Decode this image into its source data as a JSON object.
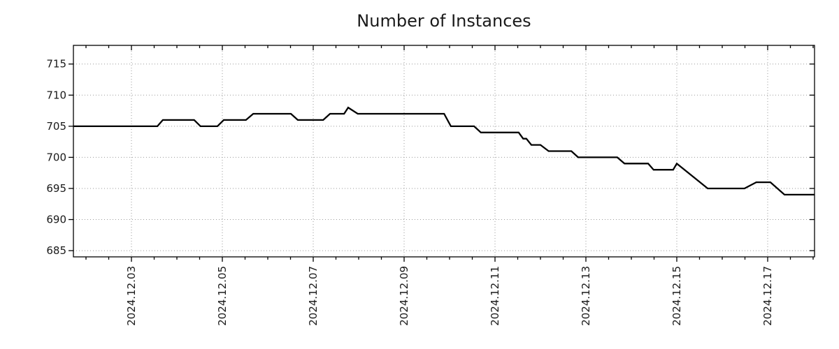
{
  "chart_data": {
    "type": "line",
    "title": "Number of Instances",
    "xlabel": "",
    "ylabel": "",
    "grid": true,
    "grid_style": "dotted",
    "legend": "none",
    "colors": {
      "line": "#000000",
      "grid": "#9a9a9a",
      "text": "#1a1a1a",
      "background": "#ffffff"
    },
    "y_ticks": [
      685,
      690,
      695,
      700,
      705,
      710,
      715
    ],
    "ylim": [
      684,
      718
    ],
    "x_tick_labels": [
      "2024.12.03",
      "2024.12.05",
      "2024.12.07",
      "2024.12.09",
      "2024.12.11",
      "2024.12.13",
      "2024.12.15",
      "2024.12.17"
    ],
    "x_major_days": [
      0,
      2,
      4,
      6,
      8,
      10,
      12,
      14
    ],
    "x_minor_start": -1.0,
    "x_minor_step": 0.5,
    "xlim_days": [
      -1.277,
      15.031
    ],
    "x_day_zero_label": "2024.12.03",
    "series": [
      {
        "name": "instances",
        "color": "#000000",
        "points": [
          [
            -1.277,
            705
          ],
          [
            0.57,
            705
          ],
          [
            0.69,
            706
          ],
          [
            1.38,
            706
          ],
          [
            1.52,
            705
          ],
          [
            1.89,
            705
          ],
          [
            2.03,
            706
          ],
          [
            2.52,
            706
          ],
          [
            2.68,
            707
          ],
          [
            3.51,
            707
          ],
          [
            3.66,
            706
          ],
          [
            4.22,
            706
          ],
          [
            4.37,
            707
          ],
          [
            4.68,
            707
          ],
          [
            4.77,
            708
          ],
          [
            4.98,
            707
          ],
          [
            6.88,
            707
          ],
          [
            7.03,
            705
          ],
          [
            7.54,
            705
          ],
          [
            7.69,
            704
          ],
          [
            8.52,
            704
          ],
          [
            8.62,
            703
          ],
          [
            8.69,
            703
          ],
          [
            8.8,
            702
          ],
          [
            9.0,
            702
          ],
          [
            9.18,
            701
          ],
          [
            9.68,
            701
          ],
          [
            9.83,
            700
          ],
          [
            10.69,
            700
          ],
          [
            10.85,
            699
          ],
          [
            11.37,
            699
          ],
          [
            11.49,
            698
          ],
          [
            11.92,
            698
          ],
          [
            12.0,
            699
          ],
          [
            12.68,
            695
          ],
          [
            13.49,
            695
          ],
          [
            13.75,
            696
          ],
          [
            14.06,
            696
          ],
          [
            14.37,
            694
          ],
          [
            15.031,
            694
          ]
        ]
      }
    ]
  }
}
